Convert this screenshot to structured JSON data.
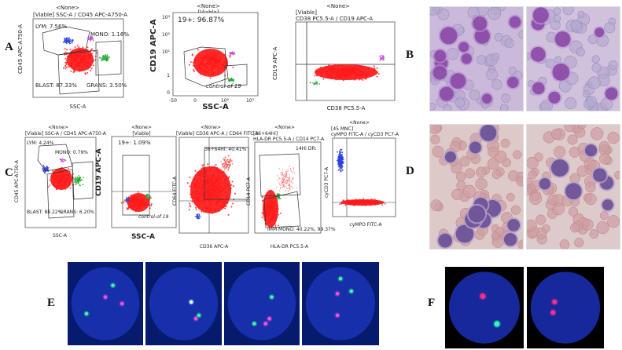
{
  "colors": {
    "blast": "#ff1a1a",
    "lym": "#2e3fe0",
    "gran": "#22aa33",
    "mono": "#c23bd4",
    "fish_bg": "#0a1a70",
    "marrow_bg": "#c9b6d8",
    "blood_bg": "#d9c3c3"
  },
  "labels": {
    "A": "A",
    "B": "B",
    "C": "C",
    "D": "D",
    "E": "E",
    "F": "F"
  },
  "row_a": {
    "p1": {
      "top": "<None>",
      "header": "[Viable] SSC-A / CD45 APC-A750-A",
      "ylabel": "CD45 APC-A750-A",
      "xlabel": "SSC-A",
      "lym": "LYM: 7.56%",
      "mono": "MONO: 1.16%",
      "blast": "BLAST: 87.33%",
      "grans": "GRANS: 3.50%"
    },
    "p2": {
      "top": "<None>",
      "header": "[Viable]",
      "gate": "19+: 96.87%",
      "ylabel": "CD19 APC-A",
      "xlabel": "SSC-A",
      "ctrl": "control-of 19",
      "yticks": [
        "10³",
        "10²",
        "10¹",
        "1",
        "0"
      ],
      "xticks": [
        "-50",
        "0",
        "10²",
        "10³"
      ]
    },
    "p3": {
      "top": "<None>",
      "header": "[Viable]",
      "header2": "CD38 PC5.5-A / CD19 APC-A",
      "ylabel": "CD19 APC-A",
      "xlabel": "CD38 PC5.5-A"
    }
  },
  "row_c": {
    "p1": {
      "top": "<None>",
      "header": "[Viable] SSC-A / CD45 APC-A750-A",
      "lym": "LYM: 4.24%",
      "mono": "MONO: 0.79%",
      "blast": "BLAST: 88.22%",
      "grans": "GRANS: 6.20%",
      "ylabel": "CD45 APC-A750-A",
      "xlabel": "SSC-A"
    },
    "p2": {
      "top": "<None>",
      "header": "[Viable]",
      "gate": "19+: 1.09%",
      "ylabel": "CD19 APC-A",
      "xlabel": "SSC-A",
      "ctrl": "control-of 19"
    },
    "p3": {
      "top": "<None>",
      "header": "[Viable] CD36 APC-A / CD64 FITC-A",
      "gate": "36+64Hi: 40.41%",
      "ylabel": "CD64 FITC-A",
      "xlabel": "CD36 APC-A"
    },
    "p4": {
      "top": "<None>",
      "header": "[36+64Hi]",
      "header2": "HLA-DR PC5.5-A / CD14 PC7-A",
      "gate": "14Hi DR:",
      "ylabel": "CD14 PC7-A",
      "xlabel": "HLA-DR PC5.5-A",
      "mono": "IMM MONO: 40.22%, 99.37%"
    },
    "p5": {
      "top": "<None>",
      "header": "[45 MNC]",
      "header2": "cyMPO FITC-A / cyCD3 PC7-A",
      "ylabel": "cyCD3 PC7-A",
      "xlabel": "cyMPO FITC-A"
    }
  }
}
